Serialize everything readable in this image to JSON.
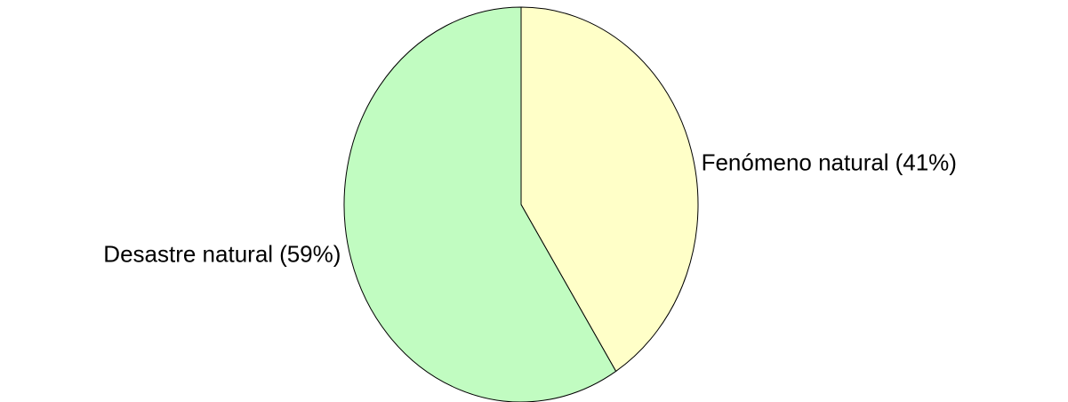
{
  "chart_data": {
    "type": "pie",
    "categories": [
      "Fenómeno natural",
      "Desastre natural"
    ],
    "values": [
      41,
      59
    ],
    "value_labels": [
      "(41%)",
      "(59%)"
    ],
    "colors": [
      "#ffffc8",
      "#c1fcc1"
    ]
  }
}
